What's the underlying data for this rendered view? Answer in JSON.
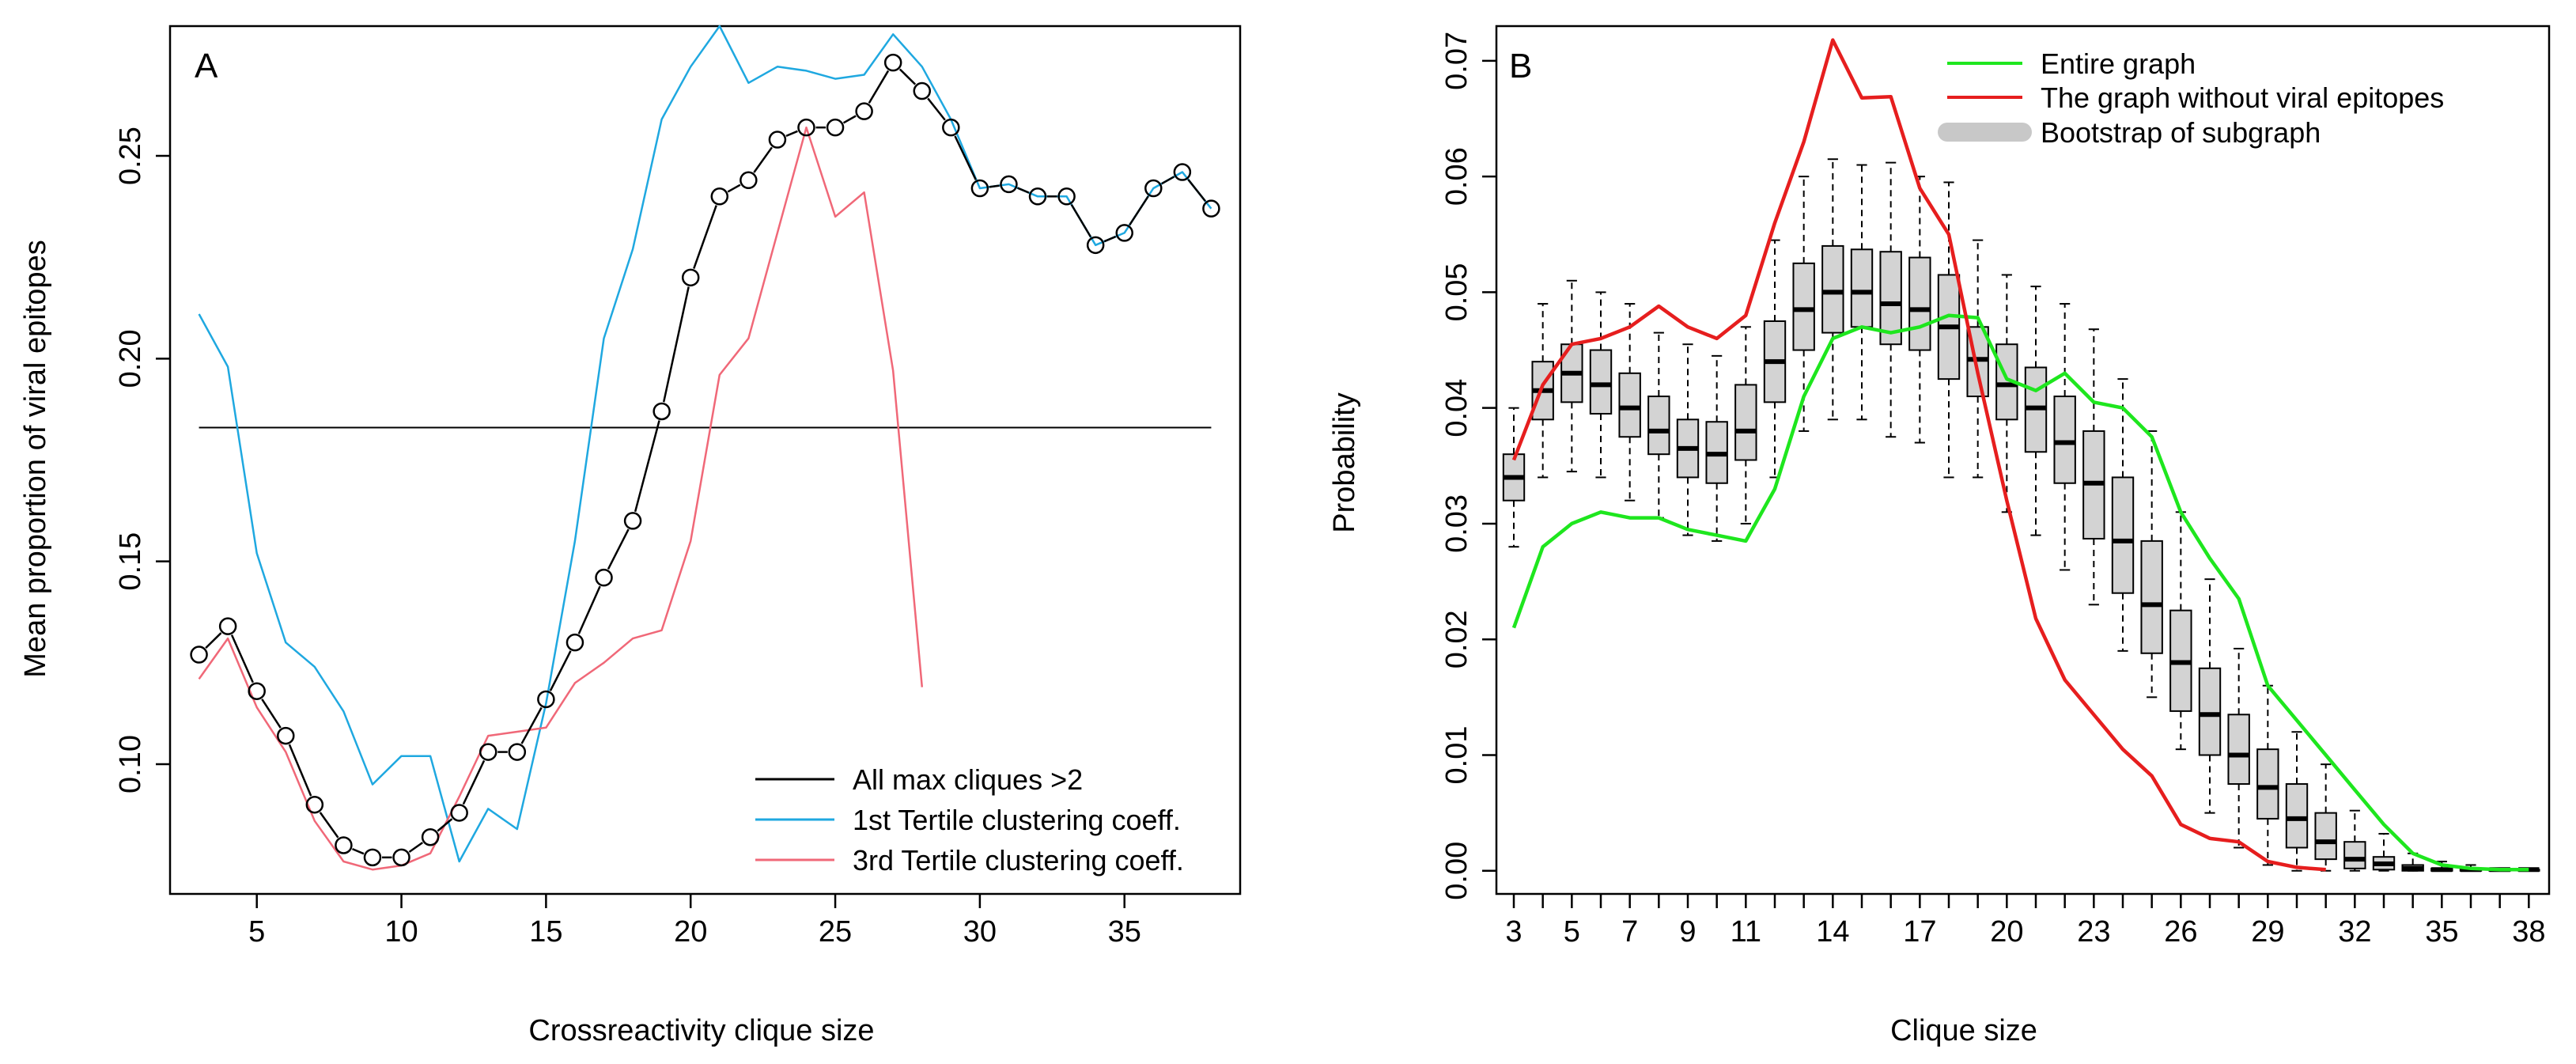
{
  "chart_data": [
    {
      "panel": "A",
      "type": "line",
      "xlabel": "Crossreactivity clique size",
      "ylabel": "Mean proportion of viral epitopes",
      "xlim": [
        2,
        39
      ],
      "ylim": [
        0.068,
        0.282
      ],
      "xticks": [
        5,
        10,
        15,
        20,
        25,
        30,
        35
      ],
      "xtick_labels": [
        "5",
        "10",
        "15",
        "20",
        "25",
        "30",
        "35"
      ],
      "yticks": [
        0.1,
        0.15,
        0.2,
        0.25
      ],
      "ytick_labels": [
        "0.10",
        "0.15",
        "0.20",
        "0.25"
      ],
      "hline": 0.183,
      "legend_position": "bottom-right",
      "series": [
        {
          "name": "All max cliques >2",
          "color": "#000000",
          "style": "line-with-circles",
          "x": [
            3,
            4,
            5,
            6,
            7,
            8,
            9,
            10,
            11,
            12,
            13,
            14,
            15,
            16,
            17,
            18,
            19,
            20,
            21,
            22,
            23,
            24,
            25,
            26,
            27,
            28,
            29,
            30,
            31,
            32,
            33,
            34,
            35,
            36,
            37,
            38
          ],
          "values": [
            0.127,
            0.134,
            0.118,
            0.107,
            0.09,
            0.08,
            0.077,
            0.077,
            0.082,
            0.088,
            0.103,
            0.103,
            0.116,
            0.13,
            0.146,
            0.16,
            0.187,
            0.22,
            0.24,
            0.244,
            0.254,
            0.257,
            0.257,
            0.261,
            0.273,
            0.266,
            0.257,
            0.242,
            0.243,
            0.24,
            0.24,
            0.228,
            0.231,
            0.242,
            0.246,
            0.237
          ]
        },
        {
          "name": "1st Tertile clustering coeff.",
          "color": "#1fa8e0",
          "style": "line",
          "x": [
            3,
            4,
            5,
            6,
            7,
            8,
            9,
            10,
            11,
            12,
            13,
            14,
            15,
            16,
            17,
            18,
            19,
            20,
            21,
            22,
            23,
            24,
            25,
            26,
            27,
            28,
            29,
            30,
            31,
            32,
            33,
            34,
            35,
            36,
            37,
            38
          ],
          "values": [
            0.211,
            0.198,
            0.152,
            0.13,
            0.124,
            0.113,
            0.095,
            0.102,
            0.102,
            0.076,
            0.089,
            0.084,
            0.115,
            0.155,
            0.205,
            0.227,
            0.259,
            0.272,
            0.282,
            0.268,
            0.272,
            0.271,
            0.269,
            0.27,
            0.28,
            0.272,
            0.259,
            0.242,
            0.243,
            0.24,
            0.24,
            0.228,
            0.231,
            0.242,
            0.246,
            0.237
          ]
        },
        {
          "name": "3rd Tertile clustering coeff.",
          "color": "#f06878",
          "style": "line",
          "x": [
            3,
            4,
            5,
            6,
            7,
            8,
            9,
            10,
            11,
            12,
            13,
            14,
            15,
            16,
            17,
            18,
            19,
            20,
            21,
            22,
            23,
            24,
            25,
            26,
            27,
            28
          ],
          "values": [
            0.121,
            0.131,
            0.114,
            0.103,
            0.086,
            0.076,
            0.074,
            0.075,
            0.078,
            0.092,
            0.107,
            0.108,
            0.109,
            0.12,
            0.125,
            0.131,
            0.133,
            0.155,
            0.196,
            0.205,
            0.231,
            0.257,
            0.235,
            0.241,
            0.197,
            0.119
          ]
        }
      ]
    },
    {
      "panel": "B",
      "type": "boxplot+line",
      "xlabel": "Clique size",
      "ylabel": "Probability",
      "xlim": [
        2.4,
        38.7
      ],
      "ylim": [
        -0.002,
        0.073
      ],
      "xticks": [
        3,
        5,
        7,
        9,
        11,
        14,
        17,
        20,
        23,
        26,
        29,
        32,
        35,
        38
      ],
      "xtick_labels": [
        "3",
        "5",
        "7",
        "9",
        "11",
        "14",
        "17",
        "20",
        "23",
        "26",
        "29",
        "32",
        "35",
        "38"
      ],
      "yticks": [
        0.0,
        0.01,
        0.02,
        0.03,
        0.04,
        0.05,
        0.06,
        0.07
      ],
      "ytick_labels": [
        "0.00",
        "0.01",
        "0.02",
        "0.03",
        "0.04",
        "0.05",
        "0.06",
        "0.07"
      ],
      "legend_position": "top-right",
      "series": [
        {
          "name": "Entire graph",
          "color": "#1ee61e",
          "x": [
            3,
            4,
            5,
            6,
            7,
            8,
            9,
            10,
            11,
            12,
            13,
            14,
            15,
            16,
            17,
            18,
            19,
            20,
            21,
            22,
            23,
            24,
            25,
            26,
            27,
            28,
            29,
            30,
            31,
            32,
            33,
            34,
            35,
            36,
            37,
            38
          ],
          "values": [
            0.021,
            0.028,
            0.03,
            0.031,
            0.0305,
            0.0305,
            0.0295,
            0.029,
            0.0285,
            0.033,
            0.041,
            0.046,
            0.047,
            0.0465,
            0.047,
            0.048,
            0.0478,
            0.0425,
            0.0415,
            0.043,
            0.0405,
            0.04,
            0.0375,
            0.031,
            0.027,
            0.0235,
            0.016,
            0.013,
            0.01,
            0.007,
            0.004,
            0.0015,
            0.0005,
            0.0002,
            0.0001,
            0.0001
          ]
        },
        {
          "name": "The graph without viral epitopes",
          "color": "#e61e1e",
          "x": [
            3,
            4,
            5,
            6,
            7,
            8,
            9,
            10,
            11,
            12,
            13,
            14,
            15,
            16,
            17,
            18,
            19,
            20,
            21,
            22,
            23,
            24,
            25,
            26,
            27,
            28,
            29,
            30,
            31
          ],
          "values": [
            0.0355,
            0.042,
            0.0455,
            0.046,
            0.047,
            0.0488,
            0.047,
            0.046,
            0.048,
            0.056,
            0.063,
            0.0718,
            0.0668,
            0.0669,
            0.059,
            0.055,
            0.043,
            0.032,
            0.0218,
            0.0165,
            0.0135,
            0.0105,
            0.0082,
            0.004,
            0.0028,
            0.0025,
            0.0008,
            0.0003,
            0.0001
          ]
        }
      ],
      "boxplot": {
        "name": "Bootstrap of subgraph",
        "fill": "#d3d3d3",
        "x": [
          3,
          4,
          5,
          6,
          7,
          8,
          9,
          10,
          11,
          12,
          13,
          14,
          15,
          16,
          17,
          18,
          19,
          20,
          21,
          22,
          23,
          24,
          25,
          26,
          27,
          28,
          29,
          30,
          31,
          32,
          33,
          34,
          35,
          36,
          37,
          38
        ],
        "median": [
          0.034,
          0.0415,
          0.043,
          0.042,
          0.04,
          0.038,
          0.0365,
          0.036,
          0.038,
          0.044,
          0.0485,
          0.05,
          0.05,
          0.049,
          0.0485,
          0.047,
          0.0442,
          0.042,
          0.04,
          0.037,
          0.0335,
          0.0285,
          0.023,
          0.018,
          0.0135,
          0.01,
          0.0072,
          0.0045,
          0.0025,
          0.001,
          0.0006,
          0.0002,
          0.0001,
          0.0001,
          0.0001,
          0.0001
        ],
        "q1": [
          0.032,
          0.039,
          0.0405,
          0.0395,
          0.0375,
          0.036,
          0.034,
          0.0335,
          0.0355,
          0.0405,
          0.045,
          0.0465,
          0.047,
          0.0455,
          0.045,
          0.0425,
          0.041,
          0.039,
          0.0362,
          0.0335,
          0.0287,
          0.024,
          0.0188,
          0.0138,
          0.01,
          0.0075,
          0.0045,
          0.002,
          0.001,
          0.0002,
          0.0001,
          0.0,
          0.0,
          0.0,
          0.0,
          0.0
        ],
        "q3": [
          0.036,
          0.044,
          0.0455,
          0.045,
          0.043,
          0.041,
          0.039,
          0.0388,
          0.042,
          0.0475,
          0.0525,
          0.054,
          0.0537,
          0.0535,
          0.053,
          0.0515,
          0.047,
          0.0455,
          0.0435,
          0.041,
          0.038,
          0.034,
          0.0285,
          0.0225,
          0.0175,
          0.0135,
          0.0105,
          0.0075,
          0.005,
          0.0025,
          0.0012,
          0.0005,
          0.0002,
          0.0002,
          0.0001,
          0.0001
        ],
        "whisker_low": [
          0.028,
          0.034,
          0.0345,
          0.034,
          0.032,
          0.0305,
          0.029,
          0.0285,
          0.03,
          0.034,
          0.038,
          0.039,
          0.039,
          0.0375,
          0.037,
          0.034,
          0.034,
          0.031,
          0.029,
          0.026,
          0.023,
          0.019,
          0.015,
          0.0105,
          0.005,
          0.002,
          0.0005,
          0.0,
          0.0,
          0.0,
          0.0,
          0.0,
          0.0,
          0.0,
          0.0,
          0.0
        ],
        "whisker_high": [
          0.04,
          0.049,
          0.051,
          0.05,
          0.049,
          0.0465,
          0.0455,
          0.0445,
          0.047,
          0.0545,
          0.06,
          0.0615,
          0.061,
          0.0612,
          0.06,
          0.0595,
          0.0545,
          0.0515,
          0.0505,
          0.049,
          0.0468,
          0.0425,
          0.038,
          0.031,
          0.0252,
          0.0192,
          0.016,
          0.012,
          0.0092,
          0.0052,
          0.0032,
          0.0015,
          0.0008,
          0.0005,
          0.0002,
          0.0002
        ]
      }
    }
  ]
}
